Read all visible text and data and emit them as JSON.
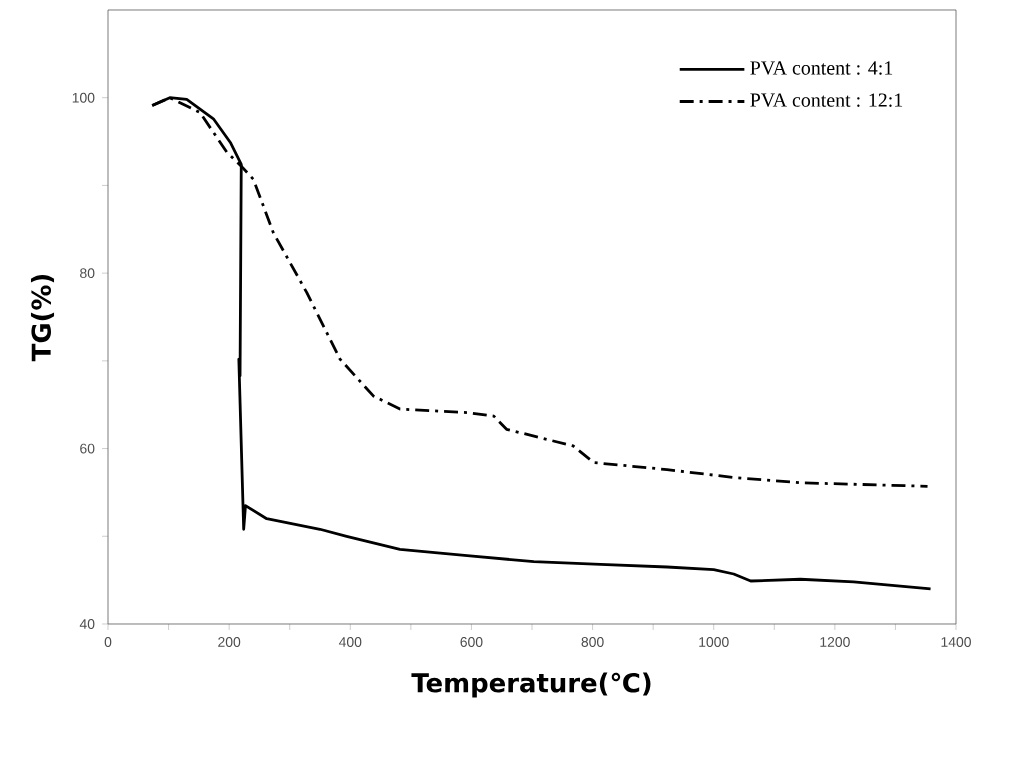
{
  "chart_data": {
    "type": "line",
    "xlabel": "Temperature(℃)",
    "ylabel": "TG(%)",
    "xlim": [
      0,
      1400
    ],
    "ylim": [
      40,
      110
    ],
    "xticks": [
      0,
      {
        "value": 100,
        "label": null
      },
      200,
      {
        "value": 300,
        "label": null
      },
      400,
      {
        "value": 500,
        "label": null
      },
      600,
      {
        "value": 700,
        "label": null
      },
      800,
      {
        "value": 900,
        "label": null
      },
      1000,
      {
        "value": 1100,
        "label": null
      },
      1200,
      {
        "value": 1300,
        "label": null
      },
      1400
    ],
    "yticks": [
      40,
      {
        "value": 50,
        "label": null
      },
      60,
      {
        "value": 70,
        "label": null
      },
      80,
      {
        "value": 90,
        "label": null
      },
      100
    ],
    "grid": false,
    "legend": "top right",
    "marker": "none",
    "series": [
      {
        "name": "PVA content : 4:1",
        "color": "#000000",
        "line_style": "solid",
        "x": [
          73,
          102,
          130,
          174,
          202,
          220,
          218,
          216,
          224,
          227,
          262,
          350,
          394,
          482,
          593,
          703,
          813,
          923,
          1000,
          1033,
          1061,
          1143,
          1231,
          1358
        ],
        "values": [
          99.1,
          100,
          99.8,
          97.6,
          94.9,
          92.4,
          68.3,
          70.2,
          50.8,
          53.5,
          52,
          50.8,
          50.0,
          48.5,
          47.8,
          47.1,
          46.8,
          46.5,
          46.2,
          45.7,
          44.9,
          45.1,
          44.8,
          44.0
        ]
      },
      {
        "name": "PVA content : 12:1",
        "color": "#000000",
        "line_style": "dashdot",
        "x": [
          73,
          102,
          152,
          196,
          220,
          240,
          273,
          328,
          383,
          438,
          482,
          593,
          637,
          658,
          768,
          802,
          923,
          1033,
          1143,
          1353
        ],
        "values": [
          99.1,
          100,
          98.3,
          93.8,
          92.2,
          90.7,
          84.6,
          77.8,
          70.2,
          66,
          64.5,
          64.1,
          63.7,
          62.2,
          60.3,
          58.4,
          57.6,
          56.7,
          56.1,
          55.7
        ]
      }
    ]
  }
}
